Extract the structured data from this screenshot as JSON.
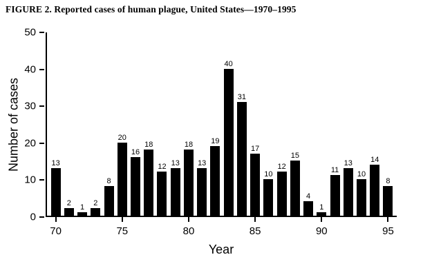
{
  "figure_title": "FIGURE 2. Reported cases of human plague, United States—1970–1995",
  "chart_data": {
    "type": "bar",
    "title": "FIGURE 2. Reported cases of human plague, United States—1970–1995",
    "x": [
      1970,
      1971,
      1972,
      1973,
      1974,
      1975,
      1976,
      1977,
      1978,
      1979,
      1980,
      1981,
      1982,
      1983,
      1984,
      1985,
      1986,
      1987,
      1988,
      1989,
      1990,
      1991,
      1992,
      1993,
      1994,
      1995
    ],
    "values": [
      13,
      2,
      1,
      2,
      8,
      20,
      16,
      18,
      12,
      13,
      18,
      13,
      19,
      40,
      31,
      17,
      10,
      12,
      15,
      4,
      1,
      11,
      13,
      10,
      14,
      8
    ],
    "xlabel": "Year",
    "ylabel": "Number of cases",
    "ylim": [
      0,
      50
    ],
    "yticks": [
      0,
      10,
      20,
      30,
      40,
      50
    ],
    "xtick_years": [
      1970,
      1975,
      1980,
      1985,
      1990,
      1995
    ],
    "xtick_labels": [
      "70",
      "75",
      "80",
      "85",
      "90",
      "95"
    ],
    "bar_color": "#000000",
    "background_color": "#ffffff",
    "grid": false,
    "legend": "none",
    "data_labels": true
  }
}
